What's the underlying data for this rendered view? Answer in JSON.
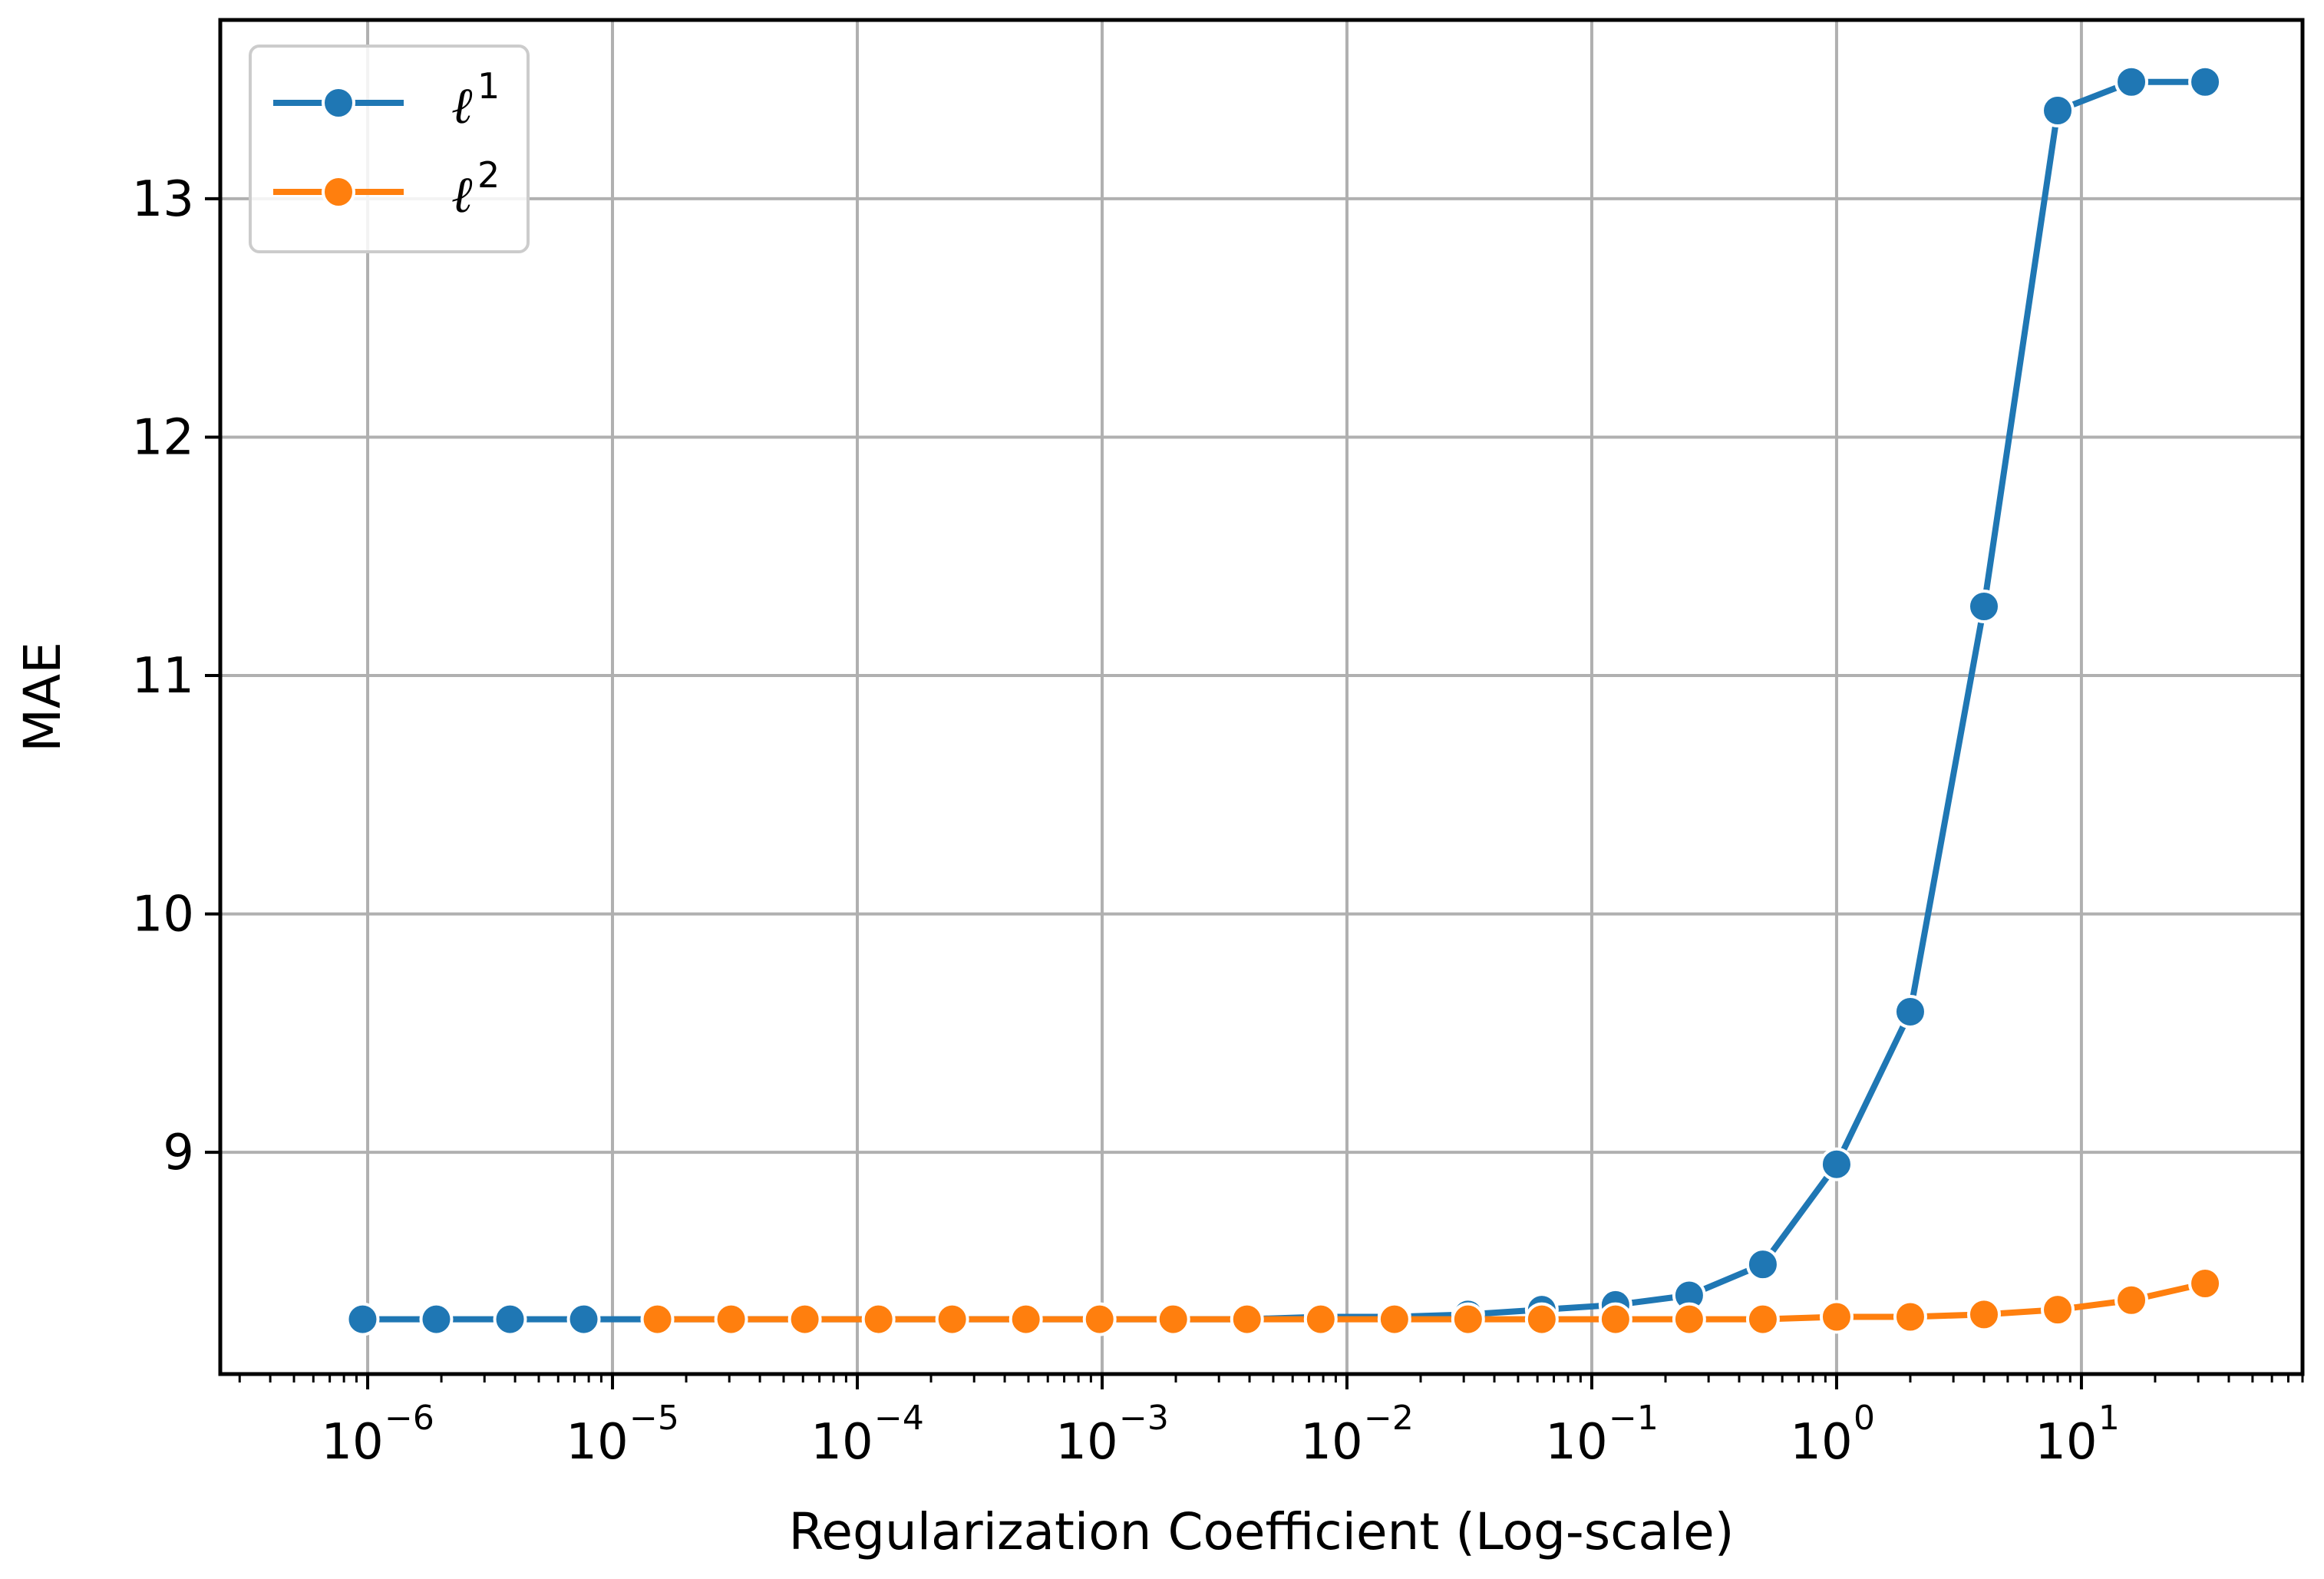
{
  "chart_data": {
    "type": "line",
    "title": "",
    "xlabel": "Regularization Coefficient (Log-scale)",
    "ylabel": "MAE",
    "x_scale": "log",
    "xlim": [
      2.5e-07,
      80
    ],
    "ylim": [
      8.07,
      13.75
    ],
    "x_ticks": [
      {
        "base": "10",
        "exp": "−6",
        "value": 1e-06
      },
      {
        "base": "10",
        "exp": "−5",
        "value": 1e-05
      },
      {
        "base": "10",
        "exp": "−4",
        "value": 0.0001
      },
      {
        "base": "10",
        "exp": "−3",
        "value": 0.001
      },
      {
        "base": "10",
        "exp": "−2",
        "value": 0.01
      },
      {
        "base": "10",
        "exp": "−1",
        "value": 0.1
      },
      {
        "base": "10",
        "exp": "0",
        "value": 1
      },
      {
        "base": "10",
        "exp": "1",
        "value": 10
      }
    ],
    "y_ticks": [
      {
        "label": "9",
        "value": 9
      },
      {
        "label": "10",
        "value": 10
      },
      {
        "label": "11",
        "value": 11
      },
      {
        "label": "12",
        "value": 12
      },
      {
        "label": "13",
        "value": 13
      }
    ],
    "grid": true,
    "legend_position": "top-left",
    "series": [
      {
        "name": "ℓ",
        "name_sup": "1",
        "color": "#1f77b4",
        "x": [
          9.537e-07,
          1.907e-06,
          3.815e-06,
          7.629e-06,
          1.526e-05,
          3.052e-05,
          6.104e-05,
          0.0001221,
          0.0002441,
          0.0004883,
          0.0009766,
          0.001953,
          0.003906,
          0.007813,
          0.01563,
          0.03125,
          0.0625,
          0.125,
          0.25,
          0.5,
          1,
          2,
          4,
          8,
          16,
          32
        ],
        "y": [
          8.3,
          8.3,
          8.3,
          8.3,
          8.3,
          8.3,
          8.3,
          8.3,
          8.3,
          8.3,
          8.3,
          8.3,
          8.3,
          8.31,
          8.31,
          8.32,
          8.34,
          8.36,
          8.4,
          8.53,
          8.95,
          9.59,
          11.29,
          13.37,
          13.49,
          13.49
        ]
      },
      {
        "name": "ℓ",
        "name_sup": "2",
        "color": "#ff7f0e",
        "x": [
          1.526e-05,
          3.052e-05,
          6.104e-05,
          0.0001221,
          0.0002441,
          0.0004883,
          0.0009766,
          0.001953,
          0.003906,
          0.007813,
          0.01563,
          0.03125,
          0.0625,
          0.125,
          0.25,
          0.5,
          1,
          2,
          4,
          8,
          16,
          32
        ],
        "y": [
          8.3,
          8.3,
          8.3,
          8.3,
          8.3,
          8.3,
          8.3,
          8.3,
          8.3,
          8.3,
          8.3,
          8.3,
          8.3,
          8.3,
          8.3,
          8.3,
          8.31,
          8.31,
          8.32,
          8.34,
          8.38,
          8.45
        ]
      }
    ]
  }
}
